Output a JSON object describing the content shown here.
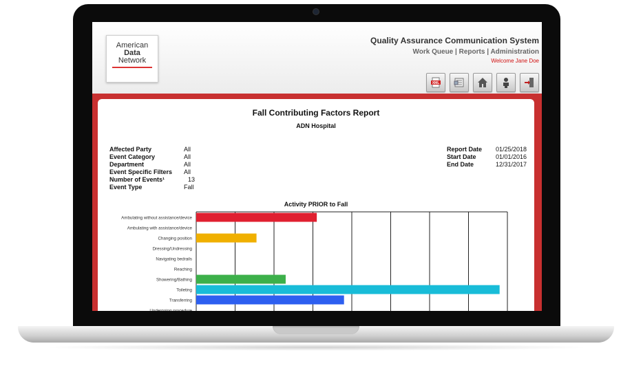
{
  "logo": {
    "line1": "American",
    "line2": "Data",
    "line3": "Network"
  },
  "header": {
    "title": "Quality Assurance Communication System",
    "nav": [
      "Work Queue",
      "Reports",
      "Administration"
    ],
    "nav_separator": "|",
    "welcome": "Welcome Jane Doe"
  },
  "toolbar": {
    "icons": [
      "xml-export-icon",
      "document-icon",
      "home-icon",
      "user-icon",
      "logout-icon"
    ],
    "xml_label": "XML"
  },
  "report": {
    "title": "Fall Contributing Factors Report",
    "subtitle": "ADN Hospital",
    "params": [
      {
        "key": "Affected Party",
        "value": "All"
      },
      {
        "key": "Event Category",
        "value": "All"
      },
      {
        "key": "Department",
        "value": "All"
      },
      {
        "key": "Event Specific Filters",
        "value": "All"
      },
      {
        "key": "Number of Events¹",
        "value": "13"
      },
      {
        "key": "Event Type",
        "value": "Fall"
      }
    ],
    "dates": [
      {
        "key": "Report Date",
        "value": "01/25/2018"
      },
      {
        "key": "Start Date",
        "value": "01/01/2016"
      },
      {
        "key": "End Date",
        "value": "12/31/2017"
      }
    ]
  },
  "chart_data": {
    "type": "bar",
    "orientation": "horizontal",
    "title": "Activity PRIOR to Fall",
    "categories": [
      "Ambulating without assistance/device",
      "Ambulating with assistance/device",
      "Changing position",
      "Dressing/Undressing",
      "Navigating bedrails",
      "Reaching",
      "Showering/Bathing",
      "Toileting",
      "Transferring",
      "Undergoing procedure"
    ],
    "values": [
      3.1,
      0,
      1.55,
      0,
      0,
      0,
      2.3,
      7.8,
      3.8,
      0
    ],
    "colors": [
      "#e02030",
      null,
      "#f0b000",
      null,
      null,
      null,
      "#3cb04a",
      "#18bcd8",
      "#2d5ff0",
      null
    ],
    "xlim": [
      0,
      8
    ],
    "grid": true
  }
}
